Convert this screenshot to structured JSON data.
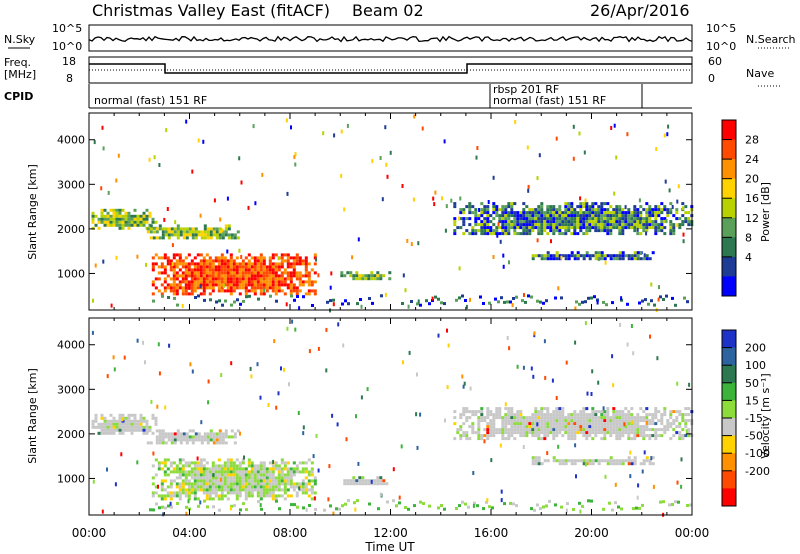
{
  "header": {
    "title": "Christmas Valley East (fitACF)",
    "beam": "Beam 02",
    "date": "26/Apr/2016"
  },
  "top_panels": {
    "nsky_label": "N.Sky",
    "nsky_ticks": [
      "10^5",
      "10^0"
    ],
    "nsearch_label": "N.Search",
    "nsearch_ticks": [
      "10^5",
      "10^0"
    ],
    "freq_label": "Freq.",
    "freq_unit": "[MHz]",
    "freq_ticks": [
      "18",
      "8"
    ],
    "nave_label": "Nave",
    "nave_ticks": [
      "60",
      "0"
    ],
    "cpid_label": "CPID",
    "cpid_segments": [
      "normal (fast) 151 RF",
      "rbsp 201 RF",
      "normal (fast) 151 RF"
    ]
  },
  "power_colorbar": {
    "label": "Power [dB]",
    "ticks": [
      "28",
      "24",
      "20",
      "16",
      "12",
      "8",
      "4"
    ],
    "colors": [
      "#ff0000",
      "#ff4a00",
      "#ff9000",
      "#ffd200",
      "#b8d200",
      "#5aa05a",
      "#2d7850",
      "#1e3c96",
      "#0000ff"
    ]
  },
  "velocity_colorbar": {
    "label": "Velocity [m s⁻¹]",
    "ticks": [
      "200",
      "100",
      "50",
      "15",
      "-15",
      "-50",
      "-100",
      "-200"
    ],
    "colors": [
      "#1e32c8",
      "#2d64a0",
      "#2d7850",
      "#3cb43c",
      "#8cdc3c",
      "#c8c8c8",
      "#ffd200",
      "#ff9000",
      "#ff4a00",
      "#ff0000"
    ]
  },
  "chart_data": [
    {
      "type": "heatmap",
      "name": "power",
      "ylabel": "Slant Range [km]",
      "ylim": [
        180,
        4600
      ],
      "xlim": [
        0,
        24
      ],
      "yticks": [
        1000,
        2000,
        3000,
        4000
      ],
      "series": [
        {
          "x0": 0.1,
          "x1": 2.7,
          "y0": 2000,
          "y1": 2450,
          "level": "mid"
        },
        {
          "x0": 2.3,
          "x1": 6.0,
          "y0": 1800,
          "y1": 2100,
          "level": "mid"
        },
        {
          "x0": 2.5,
          "x1": 9.0,
          "y0": 550,
          "y1": 1450,
          "level": "high"
        },
        {
          "x0": 10.0,
          "x1": 12.0,
          "y0": 850,
          "y1": 1050,
          "level": "mid"
        },
        {
          "x0": 14.5,
          "x1": 24.0,
          "y0": 1900,
          "y1": 2600,
          "level": "low"
        },
        {
          "x0": 17.5,
          "x1": 22.5,
          "y0": 1350,
          "y1": 1500,
          "level": "low"
        }
      ]
    },
    {
      "type": "heatmap",
      "name": "velocity",
      "ylabel": "Slant Range [km]",
      "xlabel": "Time UT",
      "ylim": [
        180,
        4600
      ],
      "xlim": [
        0,
        24
      ],
      "xticks": [
        "00:00",
        "04:00",
        "08:00",
        "12:00",
        "16:00",
        "20:00",
        "00:00"
      ],
      "yticks": [
        1000,
        2000,
        3000,
        4000
      ]
    }
  ]
}
